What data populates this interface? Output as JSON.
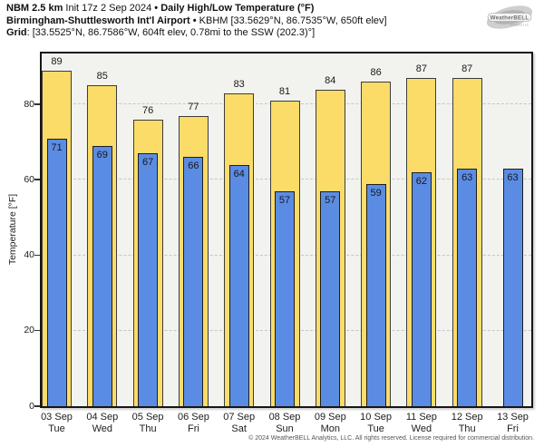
{
  "header": {
    "model": "NBM 2.5 km",
    "init": "Init 17z 2 Sep 2024",
    "bullet": "•",
    "product": "Daily High/Low Temperature (°F)",
    "station": "Birmingham-Shuttlesworth Int'l Airport",
    "station_details": "KBHM [33.5629°N, 86.7535°W, 650ft elev]",
    "grid_label": "Grid",
    "grid_details": ": [33.5525°N, 86.7586°W, 604ft elev, 0.78mi to the SSW (202.3)°]"
  },
  "logo": {
    "name": "WeatherBELL",
    "sub": "Analytics LLC"
  },
  "chart_data": {
    "type": "bar",
    "title": "Daily High/Low Temperature (°F)",
    "ylabel": "Temperature [°F]",
    "ylim": [
      0,
      93.5
    ],
    "yticks": [
      0,
      20,
      40,
      60,
      80
    ],
    "grid": "horizontal-dashed",
    "legend_position": "none",
    "plot_background": "#f2f2ef",
    "categories": [
      {
        "date": "03 Sep",
        "day": "Tue"
      },
      {
        "date": "04 Sep",
        "day": "Wed"
      },
      {
        "date": "05 Sep",
        "day": "Thu"
      },
      {
        "date": "06 Sep",
        "day": "Fri"
      },
      {
        "date": "07 Sep",
        "day": "Sat"
      },
      {
        "date": "08 Sep",
        "day": "Sun"
      },
      {
        "date": "09 Sep",
        "day": "Mon"
      },
      {
        "date": "10 Sep",
        "day": "Tue"
      },
      {
        "date": "11 Sep",
        "day": "Wed"
      },
      {
        "date": "12 Sep",
        "day": "Thu"
      },
      {
        "date": "13 Sep",
        "day": "Fri"
      }
    ],
    "series": [
      {
        "name": "High",
        "color": "#fbdc69",
        "values": [
          89,
          85,
          76,
          77,
          83,
          81,
          84,
          86,
          87,
          87,
          null
        ]
      },
      {
        "name": "Low",
        "color": "#5b8ce4",
        "values": [
          71,
          69,
          67,
          66,
          64,
          57,
          57,
          59,
          62,
          63,
          63
        ]
      }
    ]
  },
  "footer": "© 2024 WeatherBELL Analytics, LLC. All rights reserved. License required for commercial distribution."
}
